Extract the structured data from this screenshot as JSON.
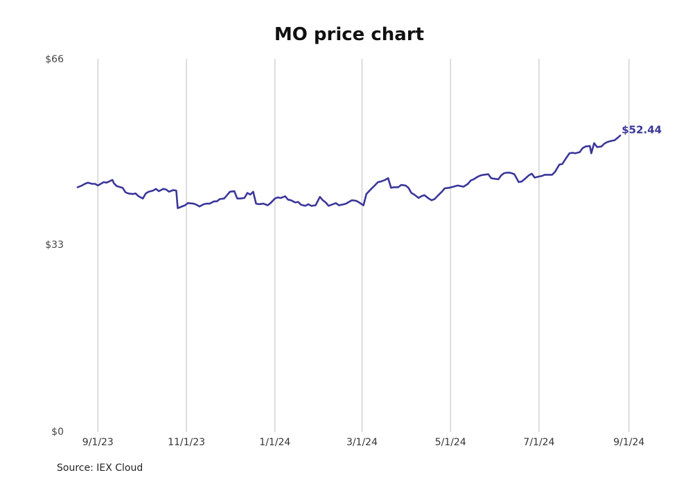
{
  "chart_data": {
    "type": "line",
    "title": "MO price chart",
    "xlabel": "",
    "ylabel": "",
    "source": "Source: IEX Cloud",
    "y_ticks": [
      "$66",
      "$33",
      "$0"
    ],
    "ylim": [
      0,
      66
    ],
    "xlim": [
      "2023-08-18",
      "2024-09-03"
    ],
    "x_ticks": [
      {
        "date": "2023-09-01",
        "label": "9/1/23"
      },
      {
        "date": "2023-11-01",
        "label": "11/1/23"
      },
      {
        "date": "2024-01-01",
        "label": "1/1/24"
      },
      {
        "date": "2024-03-01",
        "label": "3/1/24"
      },
      {
        "date": "2024-05-01",
        "label": "5/1/24"
      },
      {
        "date": "2024-07-01",
        "label": "7/1/24"
      },
      {
        "date": "2024-09-01",
        "label": "9/1/24"
      }
    ],
    "grid": "vertical",
    "line_color": "#3a3699",
    "last_value_label": "$52.44",
    "series": [
      {
        "points": [
          [
            "2023-08-18",
            43.3
          ],
          [
            "2023-08-21",
            43.6
          ],
          [
            "2023-08-23",
            43.9
          ],
          [
            "2023-08-25",
            44.1
          ],
          [
            "2023-08-28",
            43.9
          ],
          [
            "2023-08-30",
            43.9
          ],
          [
            "2023-09-01",
            43.6
          ],
          [
            "2023-09-05",
            44.2
          ],
          [
            "2023-09-07",
            44.1
          ],
          [
            "2023-09-11",
            44.6
          ],
          [
            "2023-09-12",
            44.0
          ],
          [
            "2023-09-14",
            43.5
          ],
          [
            "2023-09-18",
            43.2
          ],
          [
            "2023-09-20",
            42.4
          ],
          [
            "2023-09-22",
            42.2
          ],
          [
            "2023-09-25",
            42.1
          ],
          [
            "2023-09-27",
            42.2
          ],
          [
            "2023-09-29",
            41.7
          ],
          [
            "2023-10-02",
            41.3
          ],
          [
            "2023-10-04",
            42.2
          ],
          [
            "2023-10-06",
            42.5
          ],
          [
            "2023-10-09",
            42.7
          ],
          [
            "2023-10-11",
            43.0
          ],
          [
            "2023-10-13",
            42.6
          ],
          [
            "2023-10-16",
            43.0
          ],
          [
            "2023-10-18",
            42.9
          ],
          [
            "2023-10-20",
            42.5
          ],
          [
            "2023-10-23",
            42.8
          ],
          [
            "2023-10-25",
            42.7
          ],
          [
            "2023-10-26",
            39.6
          ],
          [
            "2023-10-28",
            39.8
          ],
          [
            "2023-10-31",
            40.1
          ],
          [
            "2023-11-02",
            40.5
          ],
          [
            "2023-11-06",
            40.4
          ],
          [
            "2023-11-08",
            40.2
          ],
          [
            "2023-11-10",
            39.9
          ],
          [
            "2023-11-13",
            40.3
          ],
          [
            "2023-11-15",
            40.4
          ],
          [
            "2023-11-17",
            40.4
          ],
          [
            "2023-11-20",
            40.8
          ],
          [
            "2023-11-22",
            40.8
          ],
          [
            "2023-11-24",
            41.2
          ],
          [
            "2023-11-27",
            41.3
          ],
          [
            "2023-11-29",
            41.9
          ],
          [
            "2023-12-01",
            42.5
          ],
          [
            "2023-12-04",
            42.6
          ],
          [
            "2023-12-06",
            41.3
          ],
          [
            "2023-12-08",
            41.3
          ],
          [
            "2023-12-11",
            41.4
          ],
          [
            "2023-12-13",
            42.3
          ],
          [
            "2023-12-15",
            42.0
          ],
          [
            "2023-12-17",
            42.5
          ],
          [
            "2023-12-19",
            40.4
          ],
          [
            "2023-12-21",
            40.3
          ],
          [
            "2023-12-24",
            40.4
          ],
          [
            "2023-12-27",
            40.1
          ],
          [
            "2023-12-29",
            40.5
          ],
          [
            "2024-01-01",
            41.3
          ],
          [
            "2024-01-03",
            41.5
          ],
          [
            "2024-01-05",
            41.4
          ],
          [
            "2024-01-08",
            41.7
          ],
          [
            "2024-01-10",
            41.1
          ],
          [
            "2024-01-12",
            41.0
          ],
          [
            "2024-01-15",
            40.6
          ],
          [
            "2024-01-17",
            40.7
          ],
          [
            "2024-01-19",
            40.2
          ],
          [
            "2024-01-22",
            40.0
          ],
          [
            "2024-01-24",
            40.3
          ],
          [
            "2024-01-26",
            40.0
          ],
          [
            "2024-01-29",
            40.1
          ],
          [
            "2024-02-01",
            41.6
          ],
          [
            "2024-02-03",
            41.0
          ],
          [
            "2024-02-05",
            40.6
          ],
          [
            "2024-02-07",
            40.0
          ],
          [
            "2024-02-09",
            40.2
          ],
          [
            "2024-02-12",
            40.5
          ],
          [
            "2024-02-14",
            40.1
          ],
          [
            "2024-02-16",
            40.2
          ],
          [
            "2024-02-19",
            40.4
          ],
          [
            "2024-02-21",
            40.7
          ],
          [
            "2024-02-23",
            41.0
          ],
          [
            "2024-02-26",
            40.9
          ],
          [
            "2024-02-28",
            40.6
          ],
          [
            "2024-03-02",
            40.1
          ],
          [
            "2024-03-04",
            42.1
          ],
          [
            "2024-03-07",
            42.9
          ],
          [
            "2024-03-09",
            43.4
          ],
          [
            "2024-03-12",
            44.2
          ],
          [
            "2024-03-14",
            44.3
          ],
          [
            "2024-03-17",
            44.6
          ],
          [
            "2024-03-19",
            44.9
          ],
          [
            "2024-03-21",
            43.2
          ],
          [
            "2024-03-23",
            43.3
          ],
          [
            "2024-03-26",
            43.3
          ],
          [
            "2024-03-28",
            43.7
          ],
          [
            "2024-03-31",
            43.6
          ],
          [
            "2024-04-02",
            43.2
          ],
          [
            "2024-04-04",
            42.3
          ],
          [
            "2024-04-06",
            42.0
          ],
          [
            "2024-04-09",
            41.4
          ],
          [
            "2024-04-11",
            41.7
          ],
          [
            "2024-04-13",
            41.9
          ],
          [
            "2024-04-16",
            41.3
          ],
          [
            "2024-04-18",
            41.0
          ],
          [
            "2024-04-20",
            41.2
          ],
          [
            "2024-04-23",
            42.0
          ],
          [
            "2024-04-25",
            42.5
          ],
          [
            "2024-04-27",
            43.1
          ],
          [
            "2024-04-30",
            43.2
          ],
          [
            "2024-05-03",
            43.4
          ],
          [
            "2024-05-06",
            43.6
          ],
          [
            "2024-05-08",
            43.5
          ],
          [
            "2024-05-10",
            43.4
          ],
          [
            "2024-05-13",
            43.9
          ],
          [
            "2024-05-15",
            44.5
          ],
          [
            "2024-05-17",
            44.7
          ],
          [
            "2024-05-20",
            45.2
          ],
          [
            "2024-05-22",
            45.4
          ],
          [
            "2024-05-24",
            45.5
          ],
          [
            "2024-05-27",
            45.6
          ],
          [
            "2024-05-29",
            44.9
          ],
          [
            "2024-05-31",
            44.8
          ],
          [
            "2024-06-03",
            44.7
          ],
          [
            "2024-06-05",
            45.4
          ],
          [
            "2024-06-07",
            45.8
          ],
          [
            "2024-06-10",
            45.9
          ],
          [
            "2024-06-12",
            45.8
          ],
          [
            "2024-06-14",
            45.6
          ],
          [
            "2024-06-17",
            44.2
          ],
          [
            "2024-06-19",
            44.3
          ],
          [
            "2024-06-21",
            44.7
          ],
          [
            "2024-06-24",
            45.4
          ],
          [
            "2024-06-26",
            45.7
          ],
          [
            "2024-06-28",
            45.0
          ],
          [
            "2024-07-01",
            45.2
          ],
          [
            "2024-07-03",
            45.3
          ],
          [
            "2024-07-05",
            45.5
          ],
          [
            "2024-07-08",
            45.5
          ],
          [
            "2024-07-10",
            45.5
          ],
          [
            "2024-07-12",
            46.0
          ],
          [
            "2024-07-15",
            47.3
          ],
          [
            "2024-07-17",
            47.4
          ],
          [
            "2024-07-19",
            48.2
          ],
          [
            "2024-07-22",
            49.3
          ],
          [
            "2024-07-24",
            49.4
          ],
          [
            "2024-07-26",
            49.3
          ],
          [
            "2024-07-29",
            49.5
          ],
          [
            "2024-07-31",
            50.2
          ],
          [
            "2024-08-02",
            50.5
          ],
          [
            "2024-08-05",
            50.6
          ],
          [
            "2024-08-06",
            49.3
          ],
          [
            "2024-08-08",
            51.1
          ],
          [
            "2024-08-10",
            50.4
          ],
          [
            "2024-08-13",
            50.5
          ],
          [
            "2024-08-15",
            51.0
          ],
          [
            "2024-08-17",
            51.3
          ],
          [
            "2024-08-20",
            51.5
          ],
          [
            "2024-08-22",
            51.6
          ],
          [
            "2024-08-24",
            52.0
          ],
          [
            "2024-08-26",
            52.44
          ]
        ]
      }
    ]
  }
}
